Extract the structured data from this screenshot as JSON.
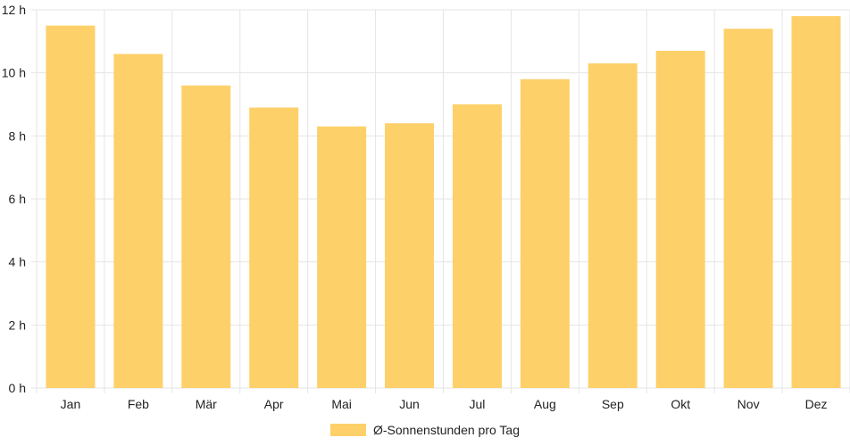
{
  "chart_data": {
    "type": "bar",
    "categories": [
      "Jan",
      "Feb",
      "Mär",
      "Apr",
      "Mai",
      "Jun",
      "Jul",
      "Aug",
      "Sep",
      "Okt",
      "Nov",
      "Dez"
    ],
    "series": [
      {
        "name": "Ø-Sonnenstunden pro Tag",
        "values": [
          11.5,
          10.6,
          9.6,
          8.9,
          8.3,
          8.4,
          9.0,
          9.8,
          10.3,
          10.7,
          11.4,
          11.8
        ]
      }
    ],
    "y_ticks": [
      "0 h",
      "2 h",
      "4 h",
      "6 h",
      "8 h",
      "10 h",
      "12 h"
    ],
    "ylim": [
      0,
      12
    ],
    "grid": true,
    "legend_position": "bottom",
    "bar_color": "#fdd06a",
    "grid_color": "#e5e5e5"
  }
}
